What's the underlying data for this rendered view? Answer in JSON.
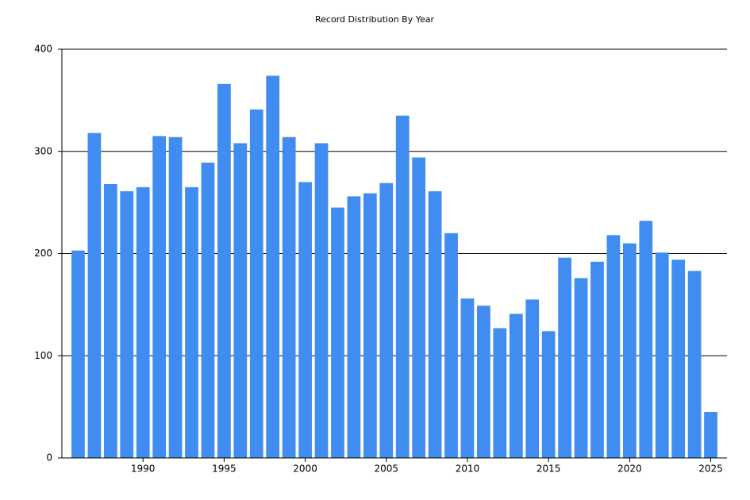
{
  "chart_data": {
    "type": "bar",
    "title": "Record Distribution By Year",
    "x": [
      1986,
      1987,
      1988,
      1989,
      1990,
      1991,
      1992,
      1993,
      1994,
      1995,
      1996,
      1997,
      1998,
      1999,
      2000,
      2001,
      2002,
      2003,
      2004,
      2005,
      2006,
      2007,
      2008,
      2009,
      2010,
      2011,
      2012,
      2013,
      2014,
      2015,
      2016,
      2017,
      2018,
      2019,
      2020,
      2021,
      2022,
      2023,
      2024,
      2025
    ],
    "values": [
      203,
      318,
      268,
      261,
      265,
      315,
      314,
      265,
      289,
      366,
      308,
      341,
      374,
      314,
      270,
      308,
      245,
      256,
      259,
      269,
      335,
      294,
      261,
      220,
      156,
      149,
      127,
      141,
      155,
      124,
      196,
      176,
      192,
      218,
      210,
      232,
      201,
      194,
      183,
      45
    ],
    "color": "#418cf0",
    "xlim": [
      1985,
      2026
    ],
    "xticks": [
      1990,
      1995,
      2000,
      2005,
      2010,
      2015,
      2020,
      2025
    ],
    "ylim": [
      0,
      400
    ],
    "yticks": [
      0,
      100,
      200,
      300,
      400
    ],
    "grid": true
  }
}
